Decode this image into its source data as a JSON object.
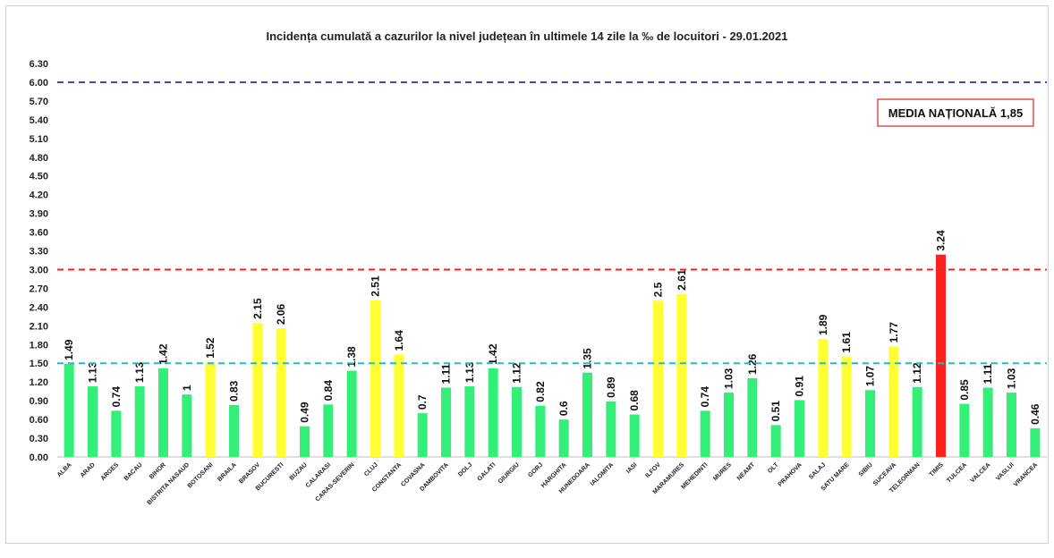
{
  "chart_data": {
    "type": "bar",
    "title": "Incidența cumulată a cazurilor la nivel județean în ultimele 14 zile la ‰ de locuitori - 29.01.2021",
    "categories": [
      "ALBA",
      "ARAD",
      "ARGES",
      "BACAU",
      "BIHOR",
      "BISTRITA NASAUD",
      "BOTOSANI",
      "BRAILA",
      "BRASOV",
      "BUCURESTI",
      "BUZAU",
      "CALARASI",
      "CARAS-SEVERIN",
      "CLUJ",
      "CONSTANTA",
      "COVASNA",
      "DAMBOVITA",
      "DOLJ",
      "GALATI",
      "GIURGIU",
      "GORJ",
      "HARGHITA",
      "HUNEDOARA",
      "IALOMITA",
      "IASI",
      "ILFOV",
      "MARAMURES",
      "MEHEDINTI",
      "MURES",
      "NEAMT",
      "OLT",
      "PRAHOVA",
      "SALAJ",
      "SATU MARE",
      "SIBIU",
      "SUCEAVA",
      "TELEORMAN",
      "TIMIS",
      "TULCEA",
      "VALCEA",
      "VASLUI",
      "VRANCEA"
    ],
    "values": [
      1.49,
      1.13,
      0.74,
      1.13,
      1.42,
      1,
      1.52,
      0.83,
      2.15,
      2.06,
      0.49,
      0.84,
      1.38,
      2.51,
      1.64,
      0.7,
      1.11,
      1.13,
      1.42,
      1.12,
      0.82,
      0.6,
      1.35,
      0.89,
      0.68,
      2.5,
      2.61,
      0.74,
      1.03,
      1.26,
      0.51,
      0.91,
      1.89,
      1.61,
      1.07,
      1.77,
      1.12,
      3.24,
      0.85,
      1.11,
      1.03,
      0.46
    ],
    "value_labels": [
      "1.49",
      "1.13",
      "0.74",
      "1.13",
      "1.42",
      "1",
      "1.52",
      "0.83",
      "2.15",
      "2.06",
      "0.49",
      "0.84",
      "1.38",
      "2.51",
      "1.64",
      "0.7",
      "1.11",
      "1.13",
      "1.42",
      "1.12",
      "0.82",
      "0.6",
      "1.35",
      "0.89",
      "0.68",
      "2.5",
      "2.61",
      "0.74",
      "1.03",
      "1.26",
      "0.51",
      "0.91",
      "1.89",
      "1.61",
      "1.07",
      "1.77",
      "1.12",
      "3.24",
      "0.85",
      "1.11",
      "1.03",
      "0.46"
    ],
    "yticks": [
      "0.00",
      "0.30",
      "0.60",
      "0.90",
      "1.20",
      "1.50",
      "1.80",
      "2.10",
      "2.40",
      "2.70",
      "3.00",
      "3.30",
      "3.60",
      "3.90",
      "4.20",
      "4.50",
      "4.80",
      "5.10",
      "5.40",
      "5.70",
      "6.00",
      "6.30"
    ],
    "ylim": [
      0,
      6.3
    ],
    "thresholds": [
      {
        "value": 6.0,
        "color": "#5b3fb0"
      },
      {
        "value": 3.0,
        "color": "#e8262a"
      },
      {
        "value": 1.5,
        "color": "#2ab7c7"
      }
    ],
    "colors": {
      "low": "#33ee77",
      "mid": "#ffff33",
      "high": "#ff2020"
    },
    "annotation": "MEDIA NAȚIONALĂ  1,85"
  }
}
